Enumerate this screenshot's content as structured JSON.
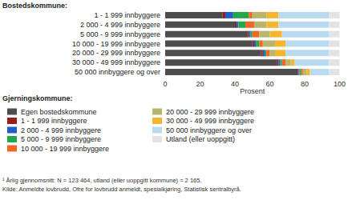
{
  "chart_data": {
    "type": "bar",
    "orientation": "horizontal",
    "stacked": true,
    "ylabel": "Bostedskommune:",
    "xlabel": "Prosent",
    "legend_title": "Gjerningskommune:",
    "legend": "bottom left",
    "grid": false,
    "annotations": [
      "¹ Årlig gjennomsnitt: N = 123 464, utland (eller uoppgitt kommune) = 2 165.",
      "Kilde: Anmeldte lovbrudd, Ofre for lovbrudd anmeldt, spesialkjøring, Statistisk sentralbyrå."
    ],
    "categories": [
      "1 - 1 999 innbyggere",
      "2 000 - 4 999 innbyggere",
      "5 000 - 9 999 innbyggere",
      "10 000 - 19 999 innbyggere",
      "20 000 - 29 999 innbyggere",
      "30 000 - 49 999 innbyggere",
      "50 000 innbyggere og over"
    ],
    "xlim": [
      0,
      100
    ],
    "xticks": [
      0,
      20,
      40,
      60,
      80,
      100
    ],
    "series": [
      {
        "name": "Egen bostedskommune",
        "color": "#4d4d4d",
        "values": [
          33,
          40,
          47,
          50,
          55,
          64,
          76
        ]
      },
      {
        "name": "1 - 1 999 innbyggere",
        "color": "#9b1c1f",
        "values": [
          1.5,
          1,
          1,
          1,
          1,
          1,
          0.5
        ]
      },
      {
        "name": "2 000 - 4 999 innbyggere",
        "color": "#1f5ccc",
        "values": [
          4.5,
          1,
          1,
          1,
          1,
          1,
          0.5
        ]
      },
      {
        "name": "5 000 - 9 999 innbyggere",
        "color": "#22a84a",
        "values": [
          9,
          4,
          1,
          2,
          1,
          1,
          1
        ]
      },
      {
        "name": "10 000 - 19 999 innbyggere",
        "color": "#f26522",
        "values": [
          2,
          5,
          4,
          2,
          2,
          2,
          1
        ]
      },
      {
        "name": "20 000 - 29 999 innbyggere",
        "color": "#b8b56e",
        "values": [
          8,
          7,
          6,
          7,
          3,
          3,
          2
        ]
      },
      {
        "name": "30 000 - 49 999 innbyggere",
        "color": "#f7b52f",
        "values": [
          7,
          7,
          7,
          6,
          6,
          2,
          2
        ]
      },
      {
        "name": "50 000 innbyggere og over",
        "color": "#b9dbf2",
        "values": [
          29,
          29,
          27,
          25,
          25,
          20,
          11
        ]
      },
      {
        "name": "Utland (eller uoppgitt)",
        "color": "#e3e3e3",
        "values": [
          6,
          6,
          6,
          6,
          6,
          6,
          6
        ]
      }
    ]
  }
}
